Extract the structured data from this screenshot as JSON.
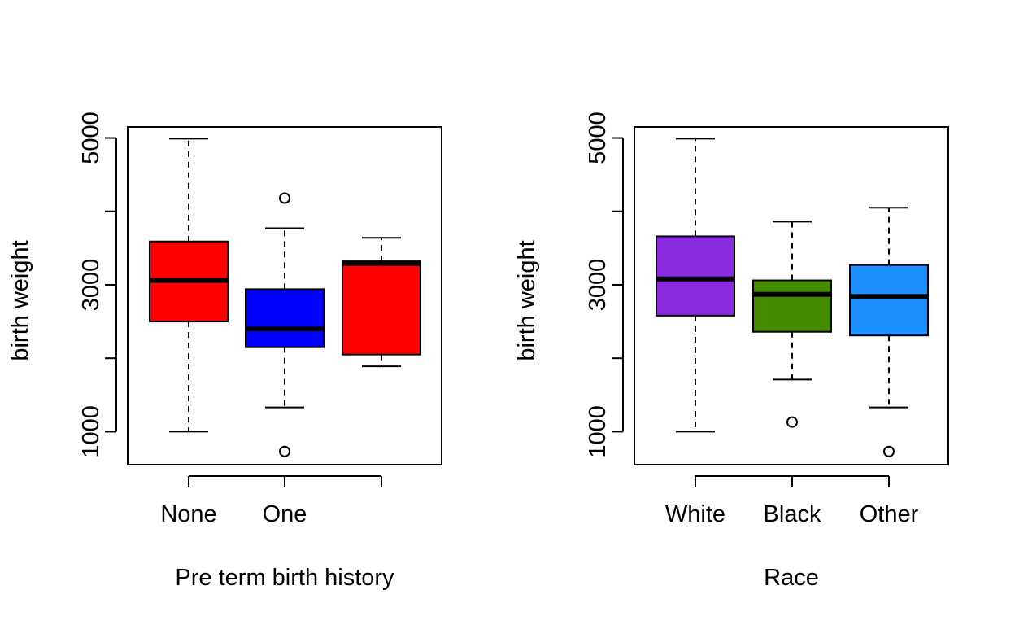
{
  "chart_data": [
    {
      "type": "boxplot",
      "xlabel": "Pre term birth history",
      "ylabel": "birth weight",
      "ylim": [
        550,
        5150
      ],
      "yticks": [
        1000,
        2000,
        3000,
        4000,
        5000
      ],
      "ytick_labels": [
        "1000",
        "3000",
        "5000"
      ],
      "categories": [
        "None",
        "One",
        ""
      ],
      "boxes": [
        {
          "color": "#ff0000",
          "min": 1000,
          "q1": 2500,
          "median": 3060,
          "q3": 3590,
          "max": 4990,
          "outliers": []
        },
        {
          "color": "#0000ff",
          "min": 1330,
          "q1": 2150,
          "median": 2400,
          "q3": 2940,
          "max": 3770,
          "outliers": [
            4180,
            730
          ]
        },
        {
          "color": "#ff0000",
          "min": 1890,
          "q1": 2050,
          "median": 3290,
          "q3": 3320,
          "max": 3640,
          "outliers": []
        }
      ]
    },
    {
      "type": "boxplot",
      "xlabel": "Race",
      "ylabel": "birth weight",
      "ylim": [
        550,
        5150
      ],
      "yticks": [
        1000,
        2000,
        3000,
        4000,
        5000
      ],
      "ytick_labels": [
        "1000",
        "3000",
        "5000"
      ],
      "categories": [
        "White",
        "Black",
        "Other"
      ],
      "boxes": [
        {
          "color": "#8a2be2",
          "min": 1000,
          "q1": 2580,
          "median": 3080,
          "q3": 3660,
          "max": 4990,
          "outliers": []
        },
        {
          "color": "#458b00",
          "min": 1710,
          "q1": 2360,
          "median": 2870,
          "q3": 3060,
          "max": 3860,
          "outliers": [
            1130
          ]
        },
        {
          "color": "#1e90ff",
          "min": 1330,
          "q1": 2310,
          "median": 2840,
          "q3": 3270,
          "max": 4050,
          "outliers": [
            730
          ]
        }
      ]
    }
  ]
}
